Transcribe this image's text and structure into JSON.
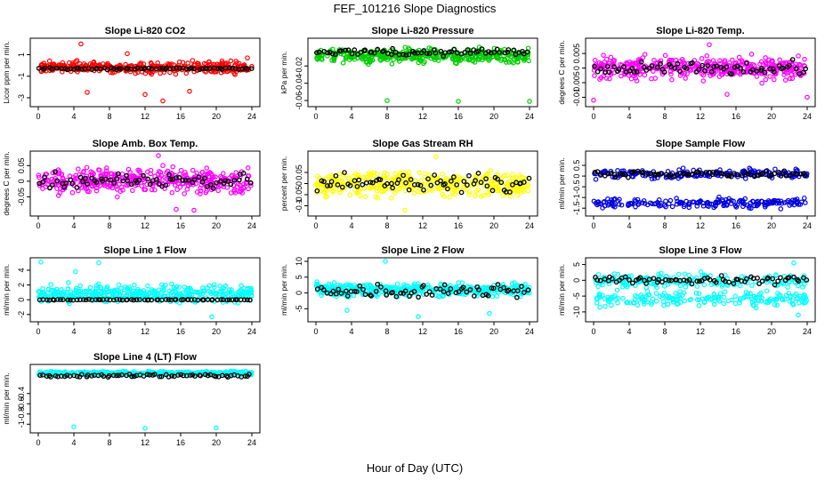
{
  "figure": {
    "title": "FEF_101216  Slope Diagnostics",
    "xlabel": "Hour of Day (UTC)"
  },
  "chart_data": [
    {
      "type": "scatter",
      "title": "Slope Li-820 CO2",
      "ylabel": "Licor ppm per min.",
      "color": "#ff0000",
      "xlim": [
        0,
        24
      ],
      "ylim": [
        -3.5,
        2.2
      ],
      "xticks": [
        0,
        4,
        8,
        12,
        16,
        20,
        24
      ],
      "yticks": [
        1,
        -1,
        -3
      ],
      "colored": {
        "x_range": [
          0,
          24
        ],
        "center": -0.2,
        "spread": 0.45,
        "outliers": [
          [
            4.8,
            2.0
          ],
          [
            5.5,
            -2.5
          ],
          [
            12,
            -2.7
          ],
          [
            14,
            -3.3
          ],
          [
            17,
            -2.4
          ],
          [
            23.5,
            0.7
          ],
          [
            10,
            1.1
          ]
        ]
      },
      "black": {
        "x_range": [
          0,
          24
        ],
        "center": -0.3,
        "spread": 0.1
      }
    },
    {
      "type": "scatter",
      "title": "Slope Li-820 Pressure",
      "ylabel": "kPa per min.",
      "color": "#00cc00",
      "xlim": [
        0,
        24
      ],
      "ylim": [
        -0.063,
        0.008
      ],
      "xticks": [
        0,
        4,
        8,
        12,
        16,
        20,
        24
      ],
      "yticks": [
        -0.02,
        -0.04,
        -0.06
      ],
      "colored": {
        "x_range": [
          0,
          24
        ],
        "center": -0.008,
        "spread": 0.007,
        "outliers": [
          [
            8,
            -0.06
          ],
          [
            16,
            -0.061
          ],
          [
            24,
            -0.061
          ]
        ]
      },
      "black": {
        "x_range": [
          0,
          24
        ],
        "center": -0.004,
        "spread": 0.004
      }
    },
    {
      "type": "scatter",
      "title": "Slope Li-820 Temp.",
      "ylabel": "degrees C per min.",
      "color": "#ff00ff",
      "xlim": [
        0,
        24
      ],
      "ylim": [
        -0.012,
        0.009
      ],
      "xticks": [
        0,
        4,
        8,
        12,
        16,
        20,
        24
      ],
      "yticks": [
        0.005,
        0.0,
        -0.005,
        -0.01
      ],
      "colored": {
        "x_range": [
          0,
          24
        ],
        "center": 0.0,
        "spread": 0.0035,
        "outliers": [
          [
            0,
            -0.011
          ],
          [
            15,
            -0.009
          ],
          [
            24,
            -0.01
          ],
          [
            13,
            0.008
          ]
        ]
      },
      "black": {
        "x_range": [
          0,
          24
        ],
        "center": 0.0,
        "spread": 0.0025
      }
    },
    {
      "type": "scatter",
      "title": "Slope Amb. Box Temp.",
      "ylabel": "degrees C per min.",
      "color": "#ff00ff",
      "xlim": [
        0,
        24
      ],
      "ylim": [
        -0.1,
        0.085
      ],
      "xticks": [
        0,
        4,
        8,
        12,
        16,
        20,
        24
      ],
      "yticks": [
        0.05,
        0.0,
        -0.05
      ],
      "colored": {
        "x_range": [
          0,
          24
        ],
        "center": 0.0,
        "spread": 0.035,
        "outliers": [
          [
            13.5,
            0.082
          ],
          [
            15.5,
            -0.09
          ],
          [
            17.5,
            -0.093
          ]
        ]
      },
      "black": {
        "x_range": [
          0,
          24
        ],
        "center": 0.0,
        "spread": 0.025
      }
    },
    {
      "type": "scatter",
      "title": "Slope Gas Stream RH",
      "ylabel": "percent per min.",
      "color": "#ffff00",
      "xlim": [
        0,
        24
      ],
      "ylim": [
        -0.13,
        0.13
      ],
      "xticks": [
        0,
        4,
        8,
        12,
        16,
        20,
        24
      ],
      "yticks": [
        0.05,
        0.0,
        -0.05,
        -0.1
      ],
      "colored": {
        "x_range": [
          0,
          24
        ],
        "center": 0.0,
        "spread": 0.05,
        "outliers": [
          [
            13.5,
            0.12
          ],
          [
            10,
            -0.12
          ]
        ]
      },
      "black": {
        "x_range": [
          0,
          24
        ],
        "center": 0.0,
        "spread": 0.04
      }
    },
    {
      "type": "scatter",
      "title": "Slope Sample Flow",
      "ylabel": "ml/min per min.",
      "color": "#0000dd",
      "xlim": [
        0,
        24
      ],
      "ylim": [
        -1.7,
        1.0
      ],
      "xticks": [
        0,
        4,
        8,
        12,
        16,
        20,
        24
      ],
      "yticks": [
        0.5,
        0.0,
        -0.5,
        -1.0,
        -1.5
      ],
      "colored": {
        "x_range": [
          0,
          24
        ],
        "bands": [
          0.1,
          -1.25
        ],
        "spread": 0.2
      },
      "black": {
        "x_range": [
          0,
          24
        ],
        "center": 0.1,
        "spread": 0.15
      }
    },
    {
      "type": "scatter",
      "title": "Slope Line 1 Flow",
      "ylabel": "ml/min per min.",
      "color": "#00ffff",
      "xlim": [
        0,
        24
      ],
      "ylim": [
        -2.5,
        5.2
      ],
      "xticks": [
        0,
        4,
        8,
        12,
        16,
        20,
        24
      ],
      "yticks": [
        4,
        2,
        0,
        -2
      ],
      "colored": {
        "x_range": [
          0,
          24
        ],
        "center": 0.8,
        "spread": 1.0,
        "outliers": [
          [
            0.3,
            5.1
          ],
          [
            6.8,
            5.0
          ],
          [
            4.2,
            3.8
          ],
          [
            19.5,
            -2.3
          ]
        ]
      },
      "black": {
        "x_range": [
          0,
          24
        ],
        "center": 0.0,
        "spread": 0.05
      }
    },
    {
      "type": "scatter",
      "title": "Slope Line 2 Flow",
      "ylabel": "ml/min per min.",
      "color": "#00ffff",
      "xlim": [
        0,
        24
      ],
      "ylim": [
        -8,
        10
      ],
      "xticks": [
        0,
        4,
        8,
        12,
        16,
        20,
        24
      ],
      "yticks": [
        10,
        5,
        0,
        -5
      ],
      "colored": {
        "x_range": [
          0,
          24
        ],
        "center": 1.0,
        "spread": 2.0,
        "outliers": [
          [
            7.8,
            10
          ],
          [
            11.5,
            -7.5
          ],
          [
            19.5,
            -6.5
          ],
          [
            3.5,
            -5.5
          ]
        ]
      },
      "black": {
        "x_range": [
          0,
          24
        ],
        "center": 0.5,
        "spread": 2.0
      }
    },
    {
      "type": "scatter",
      "title": "Slope Line 3 Flow",
      "ylabel": "ml/min per min.",
      "color": "#00ffff",
      "xlim": [
        0,
        24
      ],
      "ylim": [
        -12,
        6
      ],
      "xticks": [
        0,
        4,
        8,
        12,
        16,
        20,
        24
      ],
      "yticks": [
        5,
        0,
        -5,
        -10
      ],
      "colored": {
        "x_range": [
          0,
          24
        ],
        "bands": [
          0.0,
          -6.0
        ],
        "spread": 2.0,
        "outliers": [
          [
            22.5,
            5.5
          ],
          [
            23,
            -11
          ]
        ]
      },
      "black": {
        "x_range": [
          0,
          24
        ],
        "center": 0.0,
        "spread": 1.2
      }
    },
    {
      "type": "scatter",
      "title": "Slope Line 4 (LT) Flow",
      "ylabel": "ml/min per min.",
      "color": "#00ffff",
      "xlim": [
        0,
        24
      ],
      "ylim": [
        -1.1,
        0.1
      ],
      "xticks": [
        0,
        4,
        8,
        12,
        16,
        20,
        24
      ],
      "yticks": [
        -0.4,
        -0.6,
        -0.8,
        -1.0
      ],
      "colored": {
        "x_range": [
          0,
          24
        ],
        "center": 0.0,
        "spread": 0.03,
        "outliers": [
          [
            4,
            -1.05
          ],
          [
            12,
            -1.08
          ],
          [
            20,
            -1.07
          ]
        ]
      },
      "black": {
        "x_range": [
          0,
          24
        ],
        "center": -0.05,
        "spread": 0.03
      }
    }
  ]
}
